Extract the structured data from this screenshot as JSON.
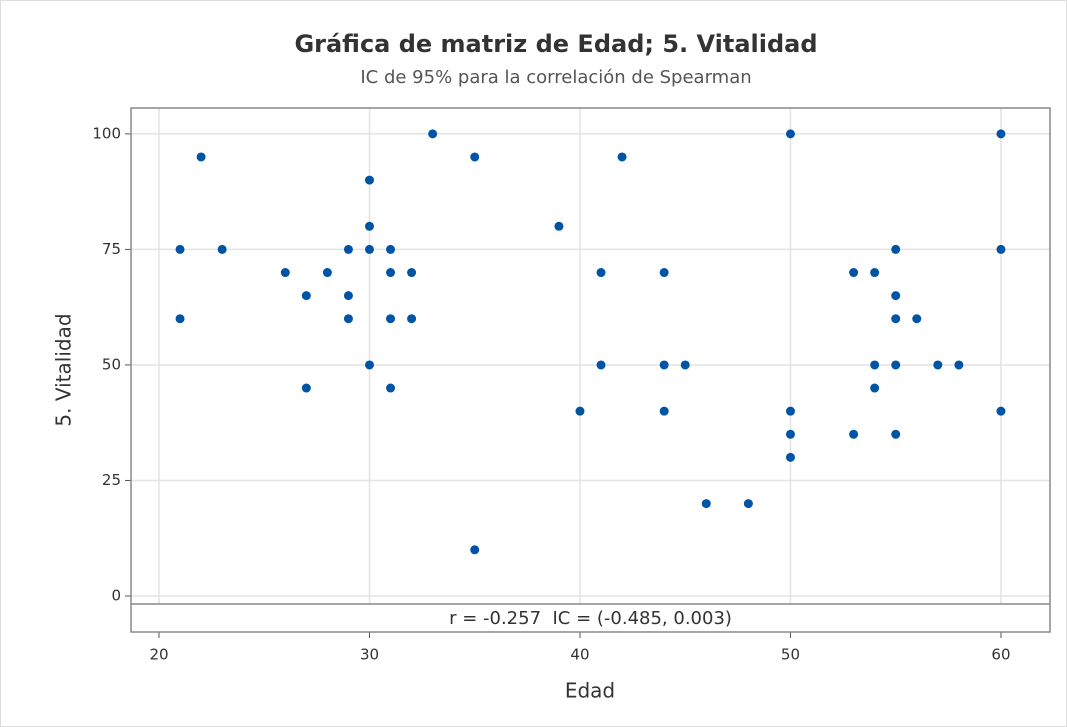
{
  "chart_data": {
    "type": "scatter",
    "title": "Gráfica de matriz de Edad; 5. Vitalidad",
    "subtitle": "IC de 95% para la correlación de Spearman",
    "x_label": "Edad",
    "y_label": "5. Vitalidad",
    "annotation": "r = -0.257  IC = (-0.485, 0.003)",
    "color": "#0054a6",
    "x": [
      21,
      21,
      22,
      23,
      26,
      27,
      27,
      28,
      29,
      29,
      29,
      30,
      30,
      30,
      30,
      31,
      31,
      31,
      31,
      32,
      32,
      33,
      35,
      35,
      39,
      40,
      41,
      41,
      42,
      44,
      44,
      44,
      45,
      46,
      48,
      50,
      50,
      50,
      50,
      53,
      53,
      54,
      54,
      54,
      55,
      55,
      55,
      55,
      55,
      56,
      57,
      58,
      60,
      60,
      60
    ],
    "values": [
      75,
      60,
      95,
      75,
      70,
      65,
      45,
      70,
      75,
      65,
      60,
      90,
      80,
      75,
      50,
      75,
      70,
      60,
      45,
      70,
      60,
      100,
      95,
      10,
      80,
      40,
      70,
      50,
      95,
      70,
      50,
      40,
      50,
      20,
      20,
      100,
      40,
      35,
      30,
      70,
      35,
      70,
      50,
      45,
      75,
      65,
      60,
      50,
      35,
      60,
      50,
      50,
      100,
      75,
      40
    ],
    "xlim": [
      18.67,
      62.33
    ],
    "ylim": [
      -1.73,
      105.6
    ],
    "xticks": [
      20,
      30,
      40,
      50,
      60
    ],
    "yticks": [
      0,
      25,
      50,
      75,
      100
    ],
    "grid": true
  }
}
